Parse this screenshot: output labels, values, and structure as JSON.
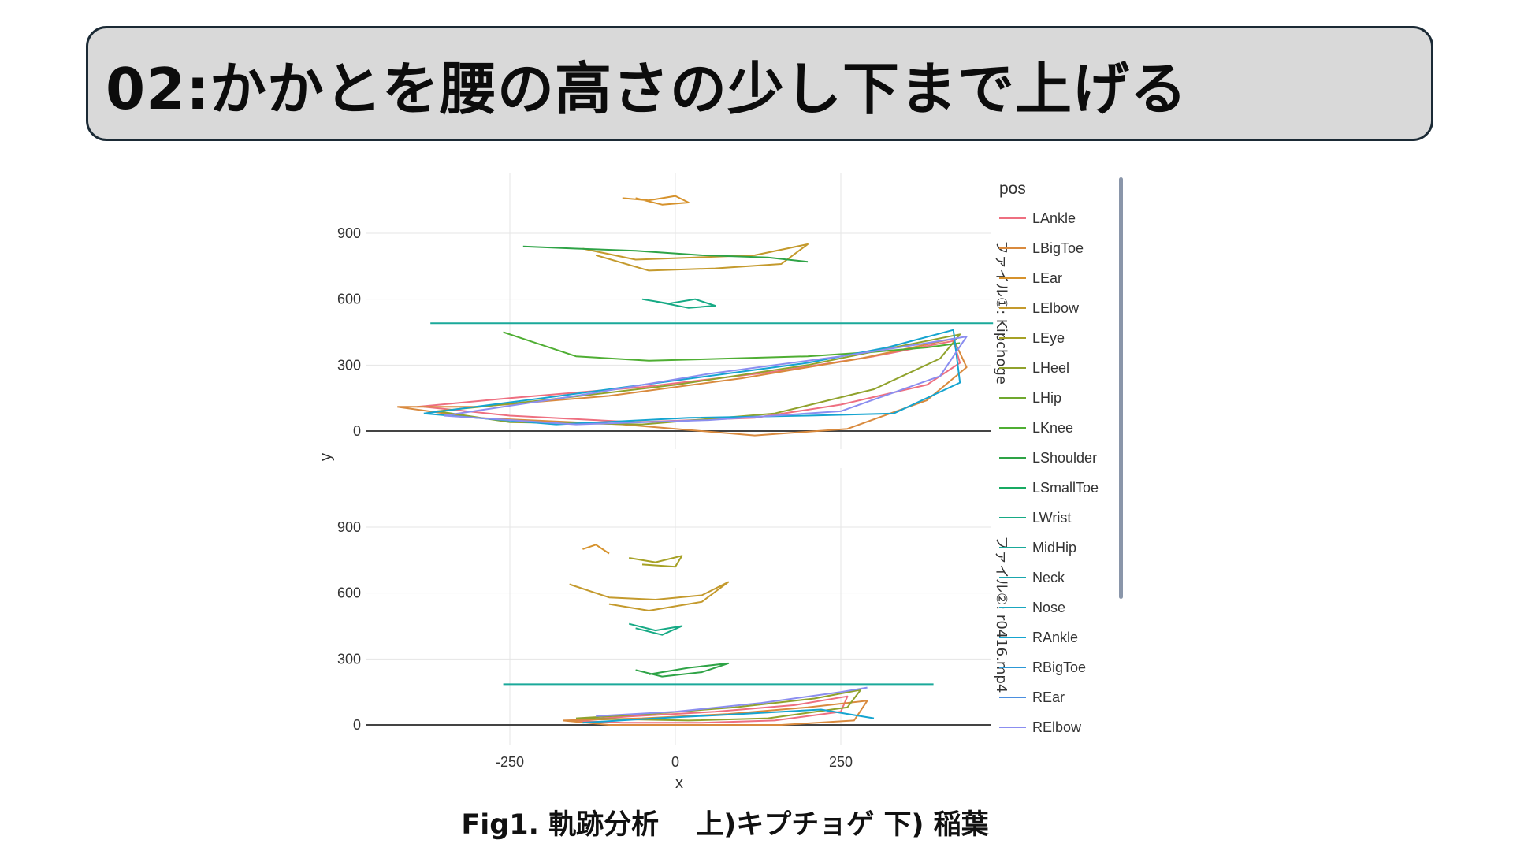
{
  "slide": {
    "title": "02:かかとを腰の高さの少し下まで上げる",
    "caption": "Fig1. 軌跡分析　 上)キプチョゲ 下) 稲葉"
  },
  "chart_data": {
    "type": "line",
    "subplots": [
      {
        "label": "ファイル①: Kipchoge",
        "ylabel": "y",
        "xlim": [
          -470,
          470
        ],
        "ylim": [
          -50,
          1160
        ],
        "yticks": [
          0,
          300,
          600,
          900
        ],
        "series": [
          {
            "name": "LAnkle",
            "x": [
              -390,
              -250,
              -50,
              150,
              300,
              420,
              430,
              380,
              250,
              120,
              -60,
              -250,
              -380
            ],
            "y": [
              110,
              150,
              200,
              270,
              340,
              410,
              310,
              210,
              120,
              60,
              40,
              70,
              110
            ]
          },
          {
            "name": "LBigToe",
            "x": [
              -420,
              -300,
              -100,
              100,
              280,
              420,
              440,
              380,
              260,
              120,
              -80,
              -300,
              -420
            ],
            "y": [
              110,
              110,
              160,
              240,
              330,
              420,
              290,
              140,
              10,
              -20,
              30,
              60,
              110
            ]
          },
          {
            "name": "LHeel",
            "x": [
              -360,
              -200,
              0,
              200,
              330,
              430,
              400,
              300,
              150,
              -50,
              -250,
              -360
            ],
            "y": [
              90,
              140,
              210,
              300,
              380,
              440,
              330,
              190,
              80,
              30,
              40,
              90
            ]
          },
          {
            "name": "LKnee",
            "x": [
              -260,
              -220,
              -150,
              -40,
              80,
              200,
              300,
              380,
              430
            ],
            "y": [
              450,
              410,
              340,
              320,
              330,
              340,
              360,
              380,
              400
            ]
          },
          {
            "name": "MidHip",
            "x": [
              -370,
              480
            ],
            "y": [
              490,
              490
            ]
          },
          {
            "name": "RAnkle",
            "x": [
              -380,
              -200,
              0,
              200,
              320,
              420,
              430,
              330,
              200,
              20,
              -180,
              -380
            ],
            "y": [
              80,
              150,
              230,
              310,
              380,
              460,
              220,
              80,
              70,
              60,
              30,
              80
            ]
          },
          {
            "name": "RElbow",
            "x": [
              -350,
              -150,
              50,
              250,
              380,
              440,
              400,
              250,
              50,
              -150,
              -350
            ],
            "y": [
              70,
              160,
              260,
              340,
              400,
              430,
              250,
              90,
              50,
              30,
              70
            ]
          },
          {
            "name": "LElbow",
            "x": [
              -140,
              -60,
              30,
              120,
              200,
              160,
              60,
              -40,
              -120
            ],
            "y": [
              830,
              780,
              790,
              800,
              850,
              760,
              740,
              730,
              800
            ]
          },
          {
            "name": "LShoulder",
            "x": [
              -230,
              -150,
              -60,
              40,
              140,
              200
            ],
            "y": [
              840,
              830,
              820,
              800,
              790,
              770
            ]
          },
          {
            "name": "LEar",
            "x": [
              -80,
              -40,
              0,
              20,
              -20,
              -60
            ],
            "y": [
              1060,
              1050,
              1070,
              1040,
              1030,
              1060
            ]
          },
          {
            "name": "LWrist",
            "x": [
              -50,
              -10,
              30,
              60,
              20,
              -30
            ],
            "y": [
              600,
              580,
              600,
              570,
              560,
              590
            ]
          }
        ]
      },
      {
        "label": "ファイル②: r0416.mp4",
        "ylabel": "",
        "xlim": [
          -470,
          470
        ],
        "ylim": [
          -50,
          1160
        ],
        "yticks": [
          0,
          300,
          600,
          900
        ],
        "xlabel": "x",
        "xticks": [
          -250,
          0,
          250
        ],
        "series": [
          {
            "name": "LAnkle",
            "x": [
              -160,
              -60,
              60,
              180,
              260,
              250,
              150,
              40,
              -80,
              -160
            ],
            "y": [
              20,
              40,
              60,
              90,
              130,
              60,
              20,
              10,
              10,
              20
            ]
          },
          {
            "name": "LBigToe",
            "x": [
              -170,
              -50,
              80,
              200,
              290,
              270,
              160,
              30,
              -100,
              -170
            ],
            "y": [
              20,
              30,
              50,
              80,
              110,
              20,
              0,
              0,
              0,
              20
            ]
          },
          {
            "name": "LHeel",
            "x": [
              -150,
              -40,
              90,
              210,
              280,
              260,
              140,
              20,
              -150
            ],
            "y": [
              30,
              50,
              80,
              120,
              160,
              80,
              30,
              20,
              30
            ]
          },
          {
            "name": "MidHip",
            "x": [
              -260,
              390
            ],
            "y": [
              185,
              185
            ]
          },
          {
            "name": "RAnkle",
            "x": [
              -140,
              -30,
              100,
              220,
              300
            ],
            "y": [
              10,
              30,
              50,
              70,
              30
            ]
          },
          {
            "name": "RElbow",
            "x": [
              -120,
              0,
              130,
              250,
              290
            ],
            "y": [
              40,
              60,
              100,
              150,
              170
            ]
          },
          {
            "name": "LElbow",
            "x": [
              -160,
              -100,
              -30,
              40,
              80,
              40,
              -40,
              -100
            ],
            "y": [
              640,
              580,
              570,
              590,
              650,
              560,
              520,
              550
            ]
          },
          {
            "name": "LShoulder",
            "x": [
              -60,
              -20,
              40,
              80,
              20,
              -40
            ],
            "y": [
              250,
              220,
              240,
              280,
              260,
              230
            ]
          },
          {
            "name": "LEar",
            "x": [
              -140,
              -120,
              -100
            ],
            "y": [
              800,
              820,
              780
            ]
          },
          {
            "name": "LWrist",
            "x": [
              -70,
              -30,
              10,
              -20,
              -60
            ],
            "y": [
              460,
              430,
              450,
              410,
              440
            ]
          },
          {
            "name": "LEye",
            "x": [
              -70,
              -30,
              10,
              0,
              -50
            ],
            "y": [
              760,
              740,
              770,
              720,
              730
            ]
          }
        ]
      }
    ],
    "legend": {
      "title": "pos",
      "placement": "right",
      "items": [
        {
          "name": "LAnkle",
          "color": "#ee6f80"
        },
        {
          "name": "LBigToe",
          "color": "#d98a3e"
        },
        {
          "name": "LEar",
          "color": "#d6922c"
        },
        {
          "name": "LElbow",
          "color": "#c49a2d"
        },
        {
          "name": "LEye",
          "color": "#a6a125"
        },
        {
          "name": "LHeel",
          "color": "#90a22c"
        },
        {
          "name": "LHip",
          "color": "#6fa82e"
        },
        {
          "name": "LKnee",
          "color": "#4fae33"
        },
        {
          "name": "LShoulder",
          "color": "#2ea346"
        },
        {
          "name": "LSmallToe",
          "color": "#18aa62"
        },
        {
          "name": "LWrist",
          "color": "#17aa85"
        },
        {
          "name": "MidHip",
          "color": "#1aa99a"
        },
        {
          "name": "Neck",
          "color": "#1aa6ad"
        },
        {
          "name": "Nose",
          "color": "#1aa6bf"
        },
        {
          "name": "RAnkle",
          "color": "#15a4d0"
        },
        {
          "name": "RBigToe",
          "color": "#2c98d6"
        },
        {
          "name": "REar",
          "color": "#4b8fdf"
        },
        {
          "name": "RElbow",
          "color": "#8b8ef0"
        }
      ]
    },
    "grid": true
  }
}
